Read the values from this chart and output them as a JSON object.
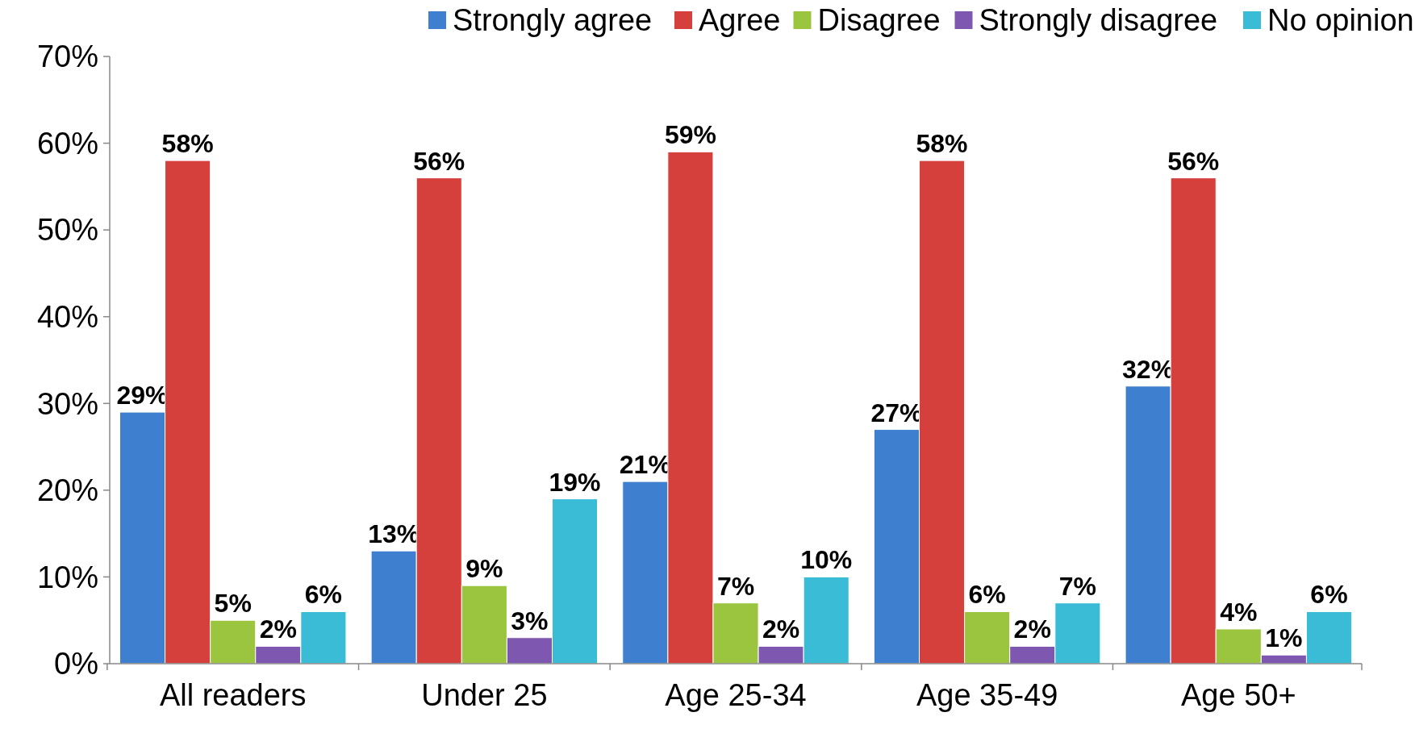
{
  "chart_data": {
    "type": "bar",
    "categories": [
      "All readers",
      "Under 25",
      "Age 25-34",
      "Age 35-49",
      "Age 50+"
    ],
    "series": [
      {
        "name": "Strongly agree",
        "color": "#3f7fcf",
        "values": [
          29,
          13,
          21,
          27,
          32
        ],
        "value_labels": [
          "29%",
          "13%",
          "21%",
          "27%",
          "32%"
        ]
      },
      {
        "name": "Agree",
        "color": "#d6403c",
        "values": [
          58,
          56,
          59,
          58,
          56
        ],
        "value_labels": [
          "58%",
          "56%",
          "59%",
          "58%",
          "56%"
        ]
      },
      {
        "name": "Disagree",
        "color": "#9bc53f",
        "values": [
          5,
          9,
          7,
          6,
          4
        ],
        "value_labels": [
          "5%",
          "9%",
          "7%",
          "6%",
          "4%"
        ]
      },
      {
        "name": "Strongly disagree",
        "color": "#7e57b0",
        "values": [
          2,
          3,
          2,
          2,
          1
        ],
        "value_labels": [
          "2%",
          "3%",
          "2%",
          "2%",
          "1%"
        ]
      },
      {
        "name": "No opinion",
        "color": "#3bbcd6",
        "values": [
          6,
          19,
          10,
          7,
          6
        ],
        "value_labels": [
          "6%",
          "19%",
          "10%",
          "7%",
          "6%"
        ]
      }
    ],
    "ylim": [
      0,
      70
    ],
    "yticks": [
      {
        "value": 0,
        "label": "0%"
      },
      {
        "value": 10,
        "label": "10%"
      },
      {
        "value": 20,
        "label": "20%"
      },
      {
        "value": 30,
        "label": "30%"
      },
      {
        "value": 40,
        "label": "40%"
      },
      {
        "value": 50,
        "label": "50%"
      },
      {
        "value": 60,
        "label": "60%"
      },
      {
        "value": 70,
        "label": "70%"
      }
    ],
    "legend": "top",
    "grid": false
  }
}
